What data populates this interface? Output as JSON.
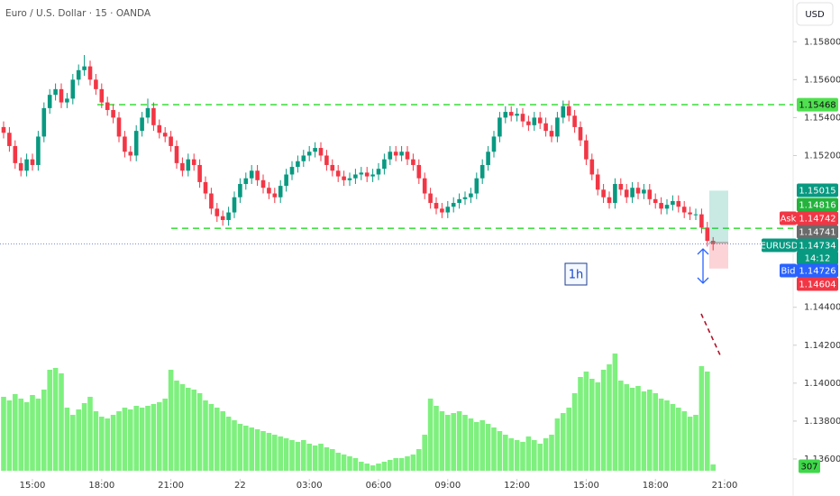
{
  "chart_data": {
    "type": "candlestick",
    "title": "Euro / U.S. Dollar · 15 · OANDA",
    "currency": "USD",
    "symbol": "EURUSD",
    "countdown": "14:12",
    "annotation": "1h",
    "up_color": "#089981",
    "down_color": "#f23645",
    "volume_color": "#7ef07e",
    "level_color": "#45e045",
    "ylim": [
      1.135,
      1.1602
    ],
    "yticks": [
      {
        "value": 1.158,
        "label": "1.15800"
      },
      {
        "value": 1.156,
        "label": "1.15600"
      },
      {
        "value": 1.154,
        "label": "1.15400"
      },
      {
        "value": 1.152,
        "label": "1.15200"
      },
      {
        "value": 1.144,
        "label": "1.14400"
      },
      {
        "value": 1.142,
        "label": "1.14200"
      },
      {
        "value": 1.14,
        "label": "1.14000"
      },
      {
        "value": 1.138,
        "label": "1.13800"
      },
      {
        "value": 1.136,
        "label": "1.13600"
      }
    ],
    "xticks": [
      {
        "value": 5,
        "label": "15:00"
      },
      {
        "value": 17,
        "label": "18:00"
      },
      {
        "value": 29,
        "label": "21:00"
      },
      {
        "value": 41,
        "label": "22"
      },
      {
        "value": 53,
        "label": "03:00"
      },
      {
        "value": 65,
        "label": "06:00"
      },
      {
        "value": 77,
        "label": "09:00"
      },
      {
        "value": 89,
        "label": "12:00"
      },
      {
        "value": 101,
        "label": "15:00"
      },
      {
        "value": 113,
        "label": "18:00"
      },
      {
        "value": 125,
        "label": "21:00"
      }
    ],
    "levels": [
      1.15468,
      1.14816
    ],
    "position": {
      "target": 1.15015,
      "entry": 1.14741,
      "stop": 1.14604
    },
    "ask_label": "Ask",
    "ask": 1.14742,
    "bid_label": "Bid",
    "bid": 1.14726,
    "open": [
      1.1535,
      1.1532,
      1.1525,
      1.1516,
      1.1512,
      1.1518,
      1.1515,
      1.153,
      1.1545,
      1.1552,
      1.1555,
      1.1548,
      1.155,
      1.156,
      1.1565,
      1.1567,
      1.156,
      1.1555,
      1.1548,
      1.1544,
      1.154,
      1.153,
      1.1522,
      1.152,
      1.1533,
      1.154,
      1.1545,
      1.1536,
      1.1532,
      1.153,
      1.1525,
      1.1516,
      1.1512,
      1.1518,
      1.1515,
      1.1506,
      1.15,
      1.1492,
      1.1488,
      1.1486,
      1.149,
      1.1498,
      1.1505,
      1.1508,
      1.1512,
      1.1507,
      1.1503,
      1.15,
      1.1498,
      1.1504,
      1.151,
      1.1514,
      1.1517,
      1.152,
      1.1522,
      1.1524,
      1.152,
      1.1515,
      1.1512,
      1.1509,
      1.1507,
      1.1508,
      1.151,
      1.1511,
      1.1509,
      1.151,
      1.1513,
      1.1518,
      1.1522,
      1.152,
      1.1522,
      1.1518,
      1.1515,
      1.1508,
      1.15,
      1.1495,
      1.1492,
      1.149,
      1.1493,
      1.1495,
      1.1497,
      1.1498,
      1.15,
      1.1508,
      1.1515,
      1.1522,
      1.153,
      1.154,
      1.1543,
      1.1541,
      1.1542,
      1.1538,
      1.1536,
      1.154,
      1.1537,
      1.1533,
      1.153,
      1.154,
      1.1546,
      1.1541,
      1.1535,
      1.1528,
      1.1518,
      1.151,
      1.1502,
      1.1498,
      1.1495,
      1.1505,
      1.1502,
      1.1498,
      1.1503,
      1.15,
      1.1502,
      1.1497,
      1.1495,
      1.1492,
      1.1494,
      1.1496,
      1.1493,
      1.149,
      1.1489,
      1.1489,
      1.1482,
      1.1475
    ],
    "high": [
      1.1538,
      1.1535,
      1.1528,
      1.1519,
      1.1521,
      1.1521,
      1.1533,
      1.1548,
      1.1555,
      1.1558,
      1.1558,
      1.1553,
      1.1563,
      1.1568,
      1.1573,
      1.157,
      1.1563,
      1.1558,
      1.1551,
      1.1547,
      1.1543,
      1.1533,
      1.1525,
      1.1536,
      1.1543,
      1.155,
      1.1548,
      1.1539,
      1.1535,
      1.1533,
      1.1528,
      1.1519,
      1.1521,
      1.1521,
      1.1518,
      1.1509,
      1.1503,
      1.1495,
      1.1491,
      1.1493,
      1.1501,
      1.1508,
      1.1511,
      1.1515,
      1.1515,
      1.151,
      1.1506,
      1.1503,
      1.1507,
      1.1513,
      1.1517,
      1.152,
      1.1523,
      1.1525,
      1.1527,
      1.1527,
      1.1523,
      1.1518,
      1.1515,
      1.1512,
      1.1511,
      1.1513,
      1.1514,
      1.1514,
      1.1513,
      1.1516,
      1.1521,
      1.1525,
      1.1525,
      1.1525,
      1.1525,
      1.1521,
      1.1518,
      1.1511,
      1.1503,
      1.1498,
      1.1495,
      1.1496,
      1.1498,
      1.15,
      1.1501,
      1.1503,
      1.1511,
      1.1518,
      1.1525,
      1.1533,
      1.1543,
      1.1546,
      1.1546,
      1.1545,
      1.1545,
      1.1541,
      1.1543,
      1.1543,
      1.154,
      1.1536,
      1.1543,
      1.1549,
      1.1549,
      1.1544,
      1.1538,
      1.1531,
      1.1521,
      1.1513,
      1.1505,
      1.1501,
      1.1508,
      1.1508,
      1.1505,
      1.1506,
      1.1506,
      1.1505,
      1.1505,
      1.15,
      1.1498,
      1.1497,
      1.1499,
      1.1499,
      1.1496,
      1.1493,
      1.1492,
      1.1492,
      1.1485,
      1.1477
    ],
    "low": [
      1.1529,
      1.1522,
      1.1513,
      1.1509,
      1.1509,
      1.1512,
      1.1512,
      1.1527,
      1.1542,
      1.1549,
      1.1545,
      1.1545,
      1.1547,
      1.1557,
      1.1562,
      1.1557,
      1.1552,
      1.1545,
      1.1541,
      1.1537,
      1.1527,
      1.1519,
      1.1517,
      1.1517,
      1.153,
      1.1537,
      1.1533,
      1.1529,
      1.1527,
      1.1522,
      1.1513,
      1.1509,
      1.1509,
      1.1512,
      1.1503,
      1.1497,
      1.1489,
      1.1485,
      1.1483,
      1.1483,
      1.1487,
      1.1495,
      1.1502,
      1.1505,
      1.1504,
      1.15,
      1.1497,
      1.1495,
      1.1495,
      1.1501,
      1.1507,
      1.1511,
      1.1514,
      1.1517,
      1.1519,
      1.1517,
      1.1512,
      1.1509,
      1.1506,
      1.1504,
      1.1504,
      1.1505,
      1.1507,
      1.1506,
      1.1506,
      1.1507,
      1.151,
      1.1515,
      1.1517,
      1.1517,
      1.1515,
      1.1512,
      1.1505,
      1.1497,
      1.1492,
      1.1489,
      1.1487,
      1.1487,
      1.149,
      1.1492,
      1.1494,
      1.1495,
      1.1497,
      1.1505,
      1.1512,
      1.1519,
      1.1527,
      1.1537,
      1.1538,
      1.1538,
      1.1535,
      1.1533,
      1.1533,
      1.1534,
      1.153,
      1.1527,
      1.1527,
      1.1537,
      1.1538,
      1.1532,
      1.1525,
      1.1515,
      1.1507,
      1.1499,
      1.1495,
      1.1492,
      1.1492,
      1.1499,
      1.1495,
      1.1495,
      1.1497,
      1.1497,
      1.1494,
      1.1492,
      1.1489,
      1.1489,
      1.1491,
      1.149,
      1.1487,
      1.1486,
      1.1486,
      1.1479,
      1.1472,
      1.147
    ],
    "close": [
      1.1532,
      1.1525,
      1.1516,
      1.1512,
      1.1518,
      1.1515,
      1.153,
      1.1545,
      1.1552,
      1.1555,
      1.1548,
      1.155,
      1.156,
      1.1565,
      1.1567,
      1.156,
      1.1555,
      1.1548,
      1.1544,
      1.154,
      1.153,
      1.1522,
      1.152,
      1.1533,
      1.154,
      1.1545,
      1.1536,
      1.1532,
      1.153,
      1.1525,
      1.1516,
      1.1512,
      1.1518,
      1.1515,
      1.1506,
      1.15,
      1.1492,
      1.1488,
      1.1486,
      1.149,
      1.1498,
      1.1505,
      1.1508,
      1.1512,
      1.1507,
      1.1503,
      1.15,
      1.1498,
      1.1504,
      1.151,
      1.1514,
      1.1517,
      1.152,
      1.1522,
      1.1524,
      1.152,
      1.1515,
      1.1512,
      1.1509,
      1.1507,
      1.1508,
      1.151,
      1.1511,
      1.1509,
      1.151,
      1.1513,
      1.1518,
      1.1522,
      1.152,
      1.1522,
      1.1518,
      1.1515,
      1.1508,
      1.15,
      1.1495,
      1.1492,
      1.149,
      1.1493,
      1.1495,
      1.1497,
      1.1498,
      1.15,
      1.1508,
      1.1515,
      1.1522,
      1.153,
      1.154,
      1.1543,
      1.1541,
      1.1542,
      1.1538,
      1.1536,
      1.154,
      1.1537,
      1.1533,
      1.153,
      1.154,
      1.1546,
      1.1541,
      1.1535,
      1.1528,
      1.1518,
      1.151,
      1.1502,
      1.1498,
      1.1495,
      1.1505,
      1.1502,
      1.1498,
      1.1503,
      1.15,
      1.1502,
      1.1497,
      1.1495,
      1.1492,
      1.1494,
      1.1496,
      1.1493,
      1.149,
      1.1489,
      1.1489,
      1.1482,
      1.1475,
      1.14734
    ],
    "volume": [
      3608,
      3432,
      3740,
      3520,
      3344,
      3696,
      3520,
      3960,
      4928,
      5016,
      4752,
      3080,
      2728,
      2992,
      3300,
      3608,
      2904,
      2640,
      2552,
      2728,
      2904,
      3080,
      2992,
      3168,
      3080,
      3168,
      3256,
      3344,
      3520,
      4928,
      4400,
      4224,
      4048,
      3960,
      3784,
      3432,
      3256,
      3080,
      2904,
      2640,
      2464,
      2288,
      2200,
      2112,
      2024,
      1936,
      1848,
      1760,
      1672,
      1584,
      1496,
      1408,
      1496,
      1320,
      1232,
      1320,
      1144,
      1056,
      880,
      792,
      704,
      616,
      440,
      352,
      264,
      352,
      440,
      528,
      616,
      616,
      704,
      792,
      1056,
      1760,
      3520,
      3168,
      2904,
      2728,
      2816,
      2904,
      2728,
      2552,
      2376,
      2464,
      2288,
      2112,
      1936,
      1760,
      1584,
      1496,
      1408,
      1672,
      1496,
      1320,
      1584,
      1760,
      2552,
      2816,
      3080,
      3784,
      4576,
      4840,
      4488,
      4312,
      4928,
      5192,
      5720,
      4400,
      4224,
      4048,
      4136,
      3872,
      3960,
      3784,
      3520,
      3432,
      3256,
      3080,
      2904,
      2640,
      2728,
      5104,
      4840,
      307
    ]
  }
}
